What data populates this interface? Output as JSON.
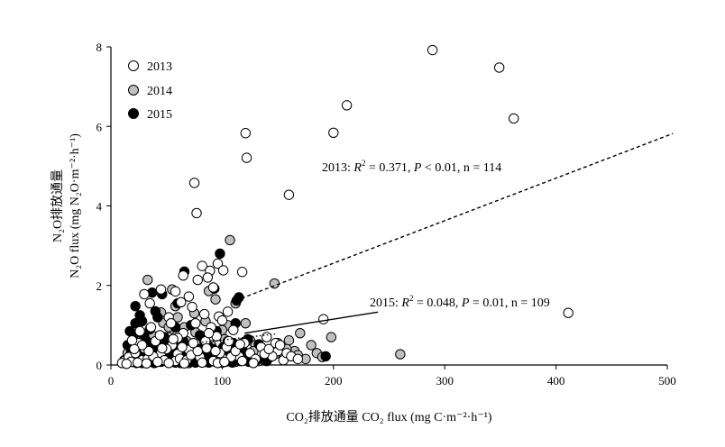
{
  "chart_data": {
    "type": "scatter",
    "xlabel": "CO₂排放通量 CO₂ flux (mg C·m⁻²·h⁻¹)",
    "ylabel_line1": "N₂O排放通量",
    "ylabel_line2": "N₂O flux (mg N₂O·m⁻²·h⁻¹)",
    "xlim": [
      0,
      500
    ],
    "ylim": [
      0,
      8
    ],
    "x_ticks": [
      0,
      100,
      200,
      300,
      400,
      500
    ],
    "y_ticks": [
      0,
      2,
      4,
      6,
      8
    ],
    "legend_position": "top-left",
    "grid": false,
    "series": [
      {
        "name": "2013",
        "fill": "#ffffff",
        "points": [
          [
            289,
            7.92
          ],
          [
            349,
            7.48
          ],
          [
            362,
            6.2
          ],
          [
            212,
            6.53
          ],
          [
            200,
            5.84
          ],
          [
            121,
            5.83
          ],
          [
            122,
            5.21
          ],
          [
            160,
            4.28
          ],
          [
            75,
            4.58
          ],
          [
            77,
            3.82
          ],
          [
            411,
            1.31
          ],
          [
            191,
            1.15
          ],
          [
            82,
            2.49
          ],
          [
            89,
            2.37
          ],
          [
            96,
            2.55
          ],
          [
            101,
            2.38
          ],
          [
            118,
            2.34
          ],
          [
            78,
            2.14
          ],
          [
            87,
            2.2
          ],
          [
            92,
            1.95
          ],
          [
            65,
            2.25
          ],
          [
            70,
            1.72
          ],
          [
            58,
            1.85
          ],
          [
            63,
            1.58
          ],
          [
            73,
            1.46
          ],
          [
            84,
            1.28
          ],
          [
            97,
            1.22
          ],
          [
            105,
            1.34
          ],
          [
            30,
            1.78
          ],
          [
            35,
            1.55
          ],
          [
            45,
            1.9
          ],
          [
            52,
            1.2
          ],
          [
            76,
            1.05
          ],
          [
            90,
            0.95
          ],
          [
            100,
            1.12
          ],
          [
            110,
            0.88
          ],
          [
            95,
            0.72
          ],
          [
            85,
            0.6
          ],
          [
            120,
            0.55
          ],
          [
            135,
            0.45
          ],
          [
            150,
            0.35
          ],
          [
            30,
            0.42
          ],
          [
            45,
            0.3
          ],
          [
            60,
            0.28
          ],
          [
            70,
            0.38
          ],
          [
            80,
            0.2
          ],
          [
            100,
            0.18
          ],
          [
            115,
            0.22
          ],
          [
            20,
            0.18
          ],
          [
            25,
            0.55
          ],
          [
            40,
            0.6
          ],
          [
            55,
            0.5
          ],
          [
            65,
            0.8
          ],
          [
            140,
            0.7
          ],
          [
            12,
            0.1
          ],
          [
            16,
            0.2
          ],
          [
            18,
            0.08
          ],
          [
            22,
            0.3
          ],
          [
            28,
            0.12
          ],
          [
            33,
            0.15
          ],
          [
            38,
            0.22
          ],
          [
            48,
            0.12
          ],
          [
            50,
            0.4
          ],
          [
            58,
            0.1
          ],
          [
            62,
            0.16
          ],
          [
            68,
            0.12
          ],
          [
            72,
            0.25
          ],
          [
            78,
            0.35
          ],
          [
            86,
            0.42
          ],
          [
            92,
            0.1
          ],
          [
            98,
            0.3
          ],
          [
            104,
            0.45
          ],
          [
            108,
            0.2
          ],
          [
            112,
            0.35
          ],
          [
            125,
            0.3
          ],
          [
            130,
            0.15
          ],
          [
            145,
            0.22
          ],
          [
            155,
            0.12
          ],
          [
            10,
            0.05
          ],
          [
            14,
            0.03
          ],
          [
            24,
            0.06
          ],
          [
            32,
            0.04
          ],
          [
            42,
            0.08
          ],
          [
            52,
            0.05
          ],
          [
            66,
            0.04
          ],
          [
            82,
            0.06
          ],
          [
            96,
            0.05
          ],
          [
            102,
            0.08
          ],
          [
            118,
            0.1
          ],
          [
            128,
            0.05
          ],
          [
            44,
            0.75
          ],
          [
            36,
            0.95
          ],
          [
            26,
            0.85
          ],
          [
            54,
            1.05
          ],
          [
            60,
            0.68
          ],
          [
            88,
            0.8
          ],
          [
            106,
            0.6
          ],
          [
            116,
            0.52
          ],
          [
            94,
            0.35
          ],
          [
            74,
            0.55
          ],
          [
            64,
            0.45
          ],
          [
            56,
            0.65
          ],
          [
            46,
            0.42
          ],
          [
            34,
            0.35
          ],
          [
            28,
            0.5
          ],
          [
            21,
            0.4
          ],
          [
            19,
            0.62
          ],
          [
            138,
            0.28
          ],
          [
            142,
            0.4
          ],
          [
            148,
            0.55
          ],
          [
            152,
            0.5
          ],
          [
            158,
            0.3
          ],
          [
            162,
            0.22
          ],
          [
            168,
            0.15
          ]
        ]
      },
      {
        "name": "2014",
        "fill": "#bfbfbf",
        "points": [
          [
            107,
            3.14
          ],
          [
            147,
            2.05
          ],
          [
            33,
            2.14
          ],
          [
            88,
            1.86
          ],
          [
            94,
            1.65
          ],
          [
            55,
            1.9
          ],
          [
            58,
            1.48
          ],
          [
            112,
            1.55
          ],
          [
            45,
            1.32
          ],
          [
            47,
            1.06
          ],
          [
            52,
            0.95
          ],
          [
            60,
            1.2
          ],
          [
            75,
            1.3
          ],
          [
            85,
            1.1
          ],
          [
            105,
            1.0
          ],
          [
            121,
            1.05
          ],
          [
            198,
            0.7
          ],
          [
            170,
            0.8
          ],
          [
            160,
            0.62
          ],
          [
            150,
            0.55
          ],
          [
            165,
            0.35
          ],
          [
            185,
            0.3
          ],
          [
            260,
            0.27
          ],
          [
            125,
            0.62
          ],
          [
            130,
            0.5
          ],
          [
            140,
            0.3
          ],
          [
            142,
            0.18
          ],
          [
            155,
            0.22
          ],
          [
            175,
            0.15
          ],
          [
            190,
            0.2
          ],
          [
            15,
            0.3
          ],
          [
            20,
            0.2
          ],
          [
            25,
            0.35
          ],
          [
            30,
            0.15
          ],
          [
            35,
            0.45
          ],
          [
            40,
            0.25
          ],
          [
            48,
            0.55
          ],
          [
            55,
            0.3
          ],
          [
            62,
            0.42
          ],
          [
            68,
            0.6
          ],
          [
            72,
            0.2
          ],
          [
            80,
            0.35
          ],
          [
            90,
            0.5
          ],
          [
            98,
            0.28
          ],
          [
            102,
            0.65
          ],
          [
            110,
            0.4
          ],
          [
            115,
            0.25
          ],
          [
            118,
            0.55
          ],
          [
            128,
            0.35
          ],
          [
            135,
            0.45
          ],
          [
            145,
            0.4
          ],
          [
            12,
            0.1
          ],
          [
            18,
            0.08
          ],
          [
            22,
            0.12
          ],
          [
            28,
            0.05
          ],
          [
            38,
            0.1
          ],
          [
            42,
            0.08
          ],
          [
            50,
            0.12
          ],
          [
            58,
            0.06
          ],
          [
            65,
            0.1
          ],
          [
            70,
            0.05
          ],
          [
            78,
            0.12
          ],
          [
            85,
            0.08
          ],
          [
            92,
            0.1
          ],
          [
            100,
            0.06
          ],
          [
            108,
            0.12
          ],
          [
            112,
            0.08
          ],
          [
            120,
            0.15
          ],
          [
            133,
            0.1
          ],
          [
            138,
            0.12
          ],
          [
            60,
            0.8
          ],
          [
            66,
            0.95
          ],
          [
            52,
            0.7
          ],
          [
            44,
            0.62
          ],
          [
            36,
            0.78
          ],
          [
            28,
            0.58
          ],
          [
            95,
            0.75
          ],
          [
            100,
            0.88
          ],
          [
            82,
            0.7
          ],
          [
            76,
            0.82
          ],
          [
            148,
            0.28
          ],
          [
            158,
            0.4
          ],
          [
            168,
            0.25
          ],
          [
            180,
            0.5
          ]
        ]
      },
      {
        "name": "2015",
        "fill": "#000000",
        "points": [
          [
            98,
            2.8
          ],
          [
            66,
            2.35
          ],
          [
            37,
            1.82
          ],
          [
            46,
            1.78
          ],
          [
            93,
            1.92
          ],
          [
            115,
            1.7
          ],
          [
            22,
            1.48
          ],
          [
            40,
            1.35
          ],
          [
            60,
            1.55
          ],
          [
            113,
            1.62
          ],
          [
            22,
            1.05
          ],
          [
            25,
            0.82
          ],
          [
            28,
            1.1
          ],
          [
            35,
            0.9
          ],
          [
            42,
            1.2
          ],
          [
            48,
            0.7
          ],
          [
            58,
            0.95
          ],
          [
            65,
            0.6
          ],
          [
            72,
            1.0
          ],
          [
            80,
            0.75
          ],
          [
            87,
            0.5
          ],
          [
            95,
            0.85
          ],
          [
            105,
            0.6
          ],
          [
            112,
            1.05
          ],
          [
            118,
            0.4
          ],
          [
            123,
            0.65
          ],
          [
            133,
            0.52
          ],
          [
            193,
            0.22
          ],
          [
            138,
            0.18
          ],
          [
            15,
            0.5
          ],
          [
            18,
            0.3
          ],
          [
            20,
            0.65
          ],
          [
            24,
            0.2
          ],
          [
            27,
            0.45
          ],
          [
            30,
            0.35
          ],
          [
            32,
            0.6
          ],
          [
            34,
            0.15
          ],
          [
            38,
            0.5
          ],
          [
            41,
            0.25
          ],
          [
            44,
            0.4
          ],
          [
            47,
            0.55
          ],
          [
            50,
            0.3
          ],
          [
            53,
            0.45
          ],
          [
            56,
            0.2
          ],
          [
            59,
            0.38
          ],
          [
            62,
            0.5
          ],
          [
            64,
            0.25
          ],
          [
            68,
            0.42
          ],
          [
            71,
            0.3
          ],
          [
            74,
            0.55
          ],
          [
            77,
            0.2
          ],
          [
            79,
            0.4
          ],
          [
            82,
            0.32
          ],
          [
            84,
            0.58
          ],
          [
            89,
            0.25
          ],
          [
            92,
            0.4
          ],
          [
            97,
            0.3
          ],
          [
            101,
            0.45
          ],
          [
            104,
            0.2
          ],
          [
            108,
            0.35
          ],
          [
            110,
            0.55
          ],
          [
            114,
            0.28
          ],
          [
            120,
            0.3
          ],
          [
            126,
            0.22
          ],
          [
            12,
            0.12
          ],
          [
            14,
            0.05
          ],
          [
            16,
            0.18
          ],
          [
            19,
            0.08
          ],
          [
            21,
            0.1
          ],
          [
            23,
            0.05
          ],
          [
            26,
            0.12
          ],
          [
            29,
            0.06
          ],
          [
            31,
            0.15
          ],
          [
            33,
            0.08
          ],
          [
            36,
            0.1
          ],
          [
            39,
            0.05
          ],
          [
            43,
            0.12
          ],
          [
            45,
            0.08
          ],
          [
            49,
            0.1
          ],
          [
            52,
            0.06
          ],
          [
            55,
            0.12
          ],
          [
            57,
            0.08
          ],
          [
            61,
            0.1
          ],
          [
            63,
            0.05
          ],
          [
            67,
            0.12
          ],
          [
            70,
            0.08
          ],
          [
            73,
            0.1
          ],
          [
            76,
            0.06
          ],
          [
            78,
            0.12
          ],
          [
            81,
            0.08
          ],
          [
            83,
            0.15
          ],
          [
            86,
            0.1
          ],
          [
            88,
            0.06
          ],
          [
            91,
            0.12
          ],
          [
            94,
            0.08
          ],
          [
            96,
            0.15
          ],
          [
            99,
            0.1
          ],
          [
            103,
            0.08
          ],
          [
            106,
            0.12
          ],
          [
            109,
            0.06
          ],
          [
            111,
            0.15
          ],
          [
            116,
            0.1
          ],
          [
            119,
            0.12
          ],
          [
            124,
            0.08
          ],
          [
            131,
            0.12
          ],
          [
            140,
            0.1
          ],
          [
            17,
            0.85
          ],
          [
            26,
            1.25
          ],
          [
            30,
            0.72
          ]
        ]
      }
    ],
    "regressions": [
      {
        "series": "2013",
        "style": "dashed",
        "x_range": [
          112,
          505
        ],
        "line_points": [
          [
            112,
            1.62
          ],
          [
            505,
            5.82
          ]
        ],
        "label_prefix": "2013: ",
        "label_r2": " = 0.371, ",
        "label_p": " < 0.01, n = 114"
      },
      {
        "series": "2014",
        "style": "dotted",
        "x_range": [
          82,
          148
        ],
        "line_points": [
          [
            82,
            0.57
          ],
          [
            148,
            0.78
          ]
        ]
      },
      {
        "series": "2015",
        "style": "solid",
        "x_range": [
          120,
          240
        ],
        "line_points": [
          [
            120,
            0.8
          ],
          [
            240,
            1.33
          ]
        ],
        "label_prefix": "2015: ",
        "label_r2": " = 0.048, ",
        "label_p": " = 0.01, n = 109"
      }
    ],
    "r2_symbol": "R",
    "r2_sup": "2",
    "p_symbol": "P"
  }
}
